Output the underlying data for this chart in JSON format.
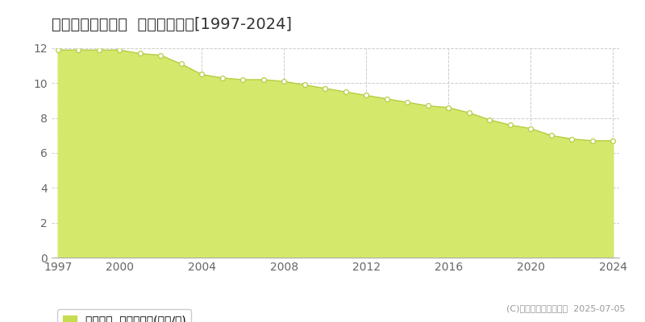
{
  "title": "佐用郡佐用町長尾  基準地価推移[1997-2024]",
  "years": [
    1997,
    1998,
    1999,
    2000,
    2001,
    2002,
    2003,
    2004,
    2005,
    2006,
    2007,
    2008,
    2009,
    2010,
    2011,
    2012,
    2013,
    2014,
    2015,
    2016,
    2017,
    2018,
    2019,
    2020,
    2021,
    2022,
    2023,
    2024
  ],
  "values": [
    11.9,
    11.9,
    11.9,
    11.9,
    11.7,
    11.6,
    11.1,
    10.5,
    10.3,
    10.2,
    10.2,
    10.1,
    9.9,
    9.7,
    9.5,
    9.3,
    9.1,
    8.9,
    8.7,
    8.6,
    8.3,
    7.9,
    7.6,
    7.4,
    7.0,
    6.8,
    6.7,
    6.7
  ],
  "fill_color": "#d4e96b",
  "line_color": "#b8cc44",
  "marker_facecolor": "#ffffff",
  "marker_edgecolor": "#b8cc44",
  "background_color": "#ffffff",
  "plot_bg_color": "#ffffff",
  "grid_color": "#cccccc",
  "title_color": "#333333",
  "tick_color": "#666666",
  "ylim": [
    0,
    12
  ],
  "yticks": [
    0,
    2,
    4,
    6,
    8,
    10,
    12
  ],
  "xticks": [
    1997,
    2000,
    2004,
    2008,
    2012,
    2016,
    2020,
    2024
  ],
  "legend_label": "基準地価  平均坪単価(万円/坪)",
  "legend_color": "#c8dc50",
  "copyright_text": "(C)土地価格ドットコム  2025-07-05",
  "title_fontsize": 14,
  "axis_fontsize": 10,
  "legend_fontsize": 10
}
